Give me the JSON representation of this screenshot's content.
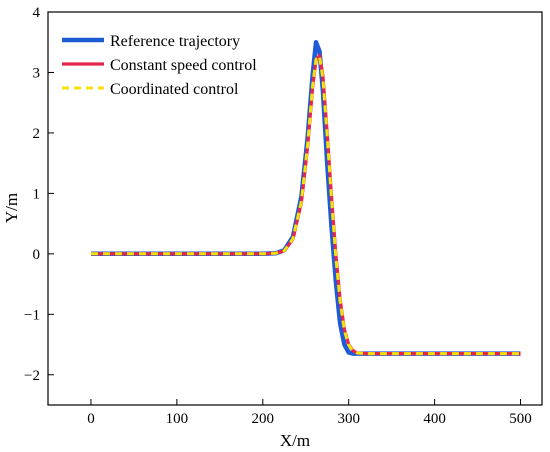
{
  "chart_data": {
    "type": "line",
    "xlabel": "X/m",
    "ylabel": "Y/m",
    "xlim": [
      -50,
      525
    ],
    "ylim": [
      -2.5,
      4
    ],
    "xticks": [
      0,
      100,
      200,
      300,
      400,
      500
    ],
    "yticks": [
      -2,
      -1,
      0,
      1,
      2,
      3,
      4
    ],
    "xtick_labels": [
      "0",
      "100",
      "200",
      "300",
      "400",
      "500"
    ],
    "ytick_labels": [
      "−2",
      "−1",
      "0",
      "1",
      "2",
      "3",
      "4"
    ],
    "legend_position": "top-left",
    "grid": false,
    "series": [
      {
        "name": "Reference trajectory",
        "color": "#1f5bd6",
        "dash": "solid",
        "x": [
          0,
          100,
          200,
          215,
          225,
          235,
          245,
          252,
          258,
          262,
          266,
          270,
          275,
          280,
          285,
          290,
          295,
          300,
          305,
          310,
          320,
          350,
          400,
          450,
          500
        ],
        "y": [
          0,
          0,
          0,
          0.01,
          0.06,
          0.28,
          0.95,
          1.9,
          2.95,
          3.5,
          3.35,
          2.7,
          1.5,
          0.45,
          -0.45,
          -1.15,
          -1.5,
          -1.63,
          -1.65,
          -1.65,
          -1.65,
          -1.65,
          -1.65,
          -1.65,
          -1.65
        ]
      },
      {
        "name": "Constant speed control",
        "color": "#e8254a",
        "dash": "solid",
        "x": [
          0,
          100,
          200,
          215,
          225,
          235,
          245,
          252,
          258,
          262,
          266,
          270,
          275,
          280,
          285,
          290,
          295,
          300,
          305,
          310,
          320,
          350,
          400,
          450,
          500
        ],
        "y": [
          0,
          0,
          0,
          0.01,
          0.05,
          0.24,
          0.85,
          1.75,
          2.75,
          3.2,
          3.28,
          2.95,
          2.0,
          0.95,
          0.0,
          -0.75,
          -1.25,
          -1.5,
          -1.6,
          -1.64,
          -1.65,
          -1.65,
          -1.65,
          -1.65,
          -1.65
        ]
      },
      {
        "name": "Coordinated control",
        "color": "#f5e10a",
        "dash": "dashed",
        "x": [
          0,
          100,
          200,
          215,
          225,
          235,
          245,
          252,
          258,
          262,
          266,
          270,
          275,
          280,
          285,
          290,
          295,
          300,
          305,
          310,
          320,
          350,
          400,
          450,
          500
        ],
        "y": [
          0,
          0,
          0,
          0.01,
          0.05,
          0.25,
          0.87,
          1.78,
          2.78,
          3.22,
          3.27,
          2.9,
          1.95,
          0.9,
          -0.05,
          -0.78,
          -1.27,
          -1.51,
          -1.61,
          -1.64,
          -1.65,
          -1.65,
          -1.65,
          -1.65,
          -1.65
        ]
      }
    ]
  }
}
